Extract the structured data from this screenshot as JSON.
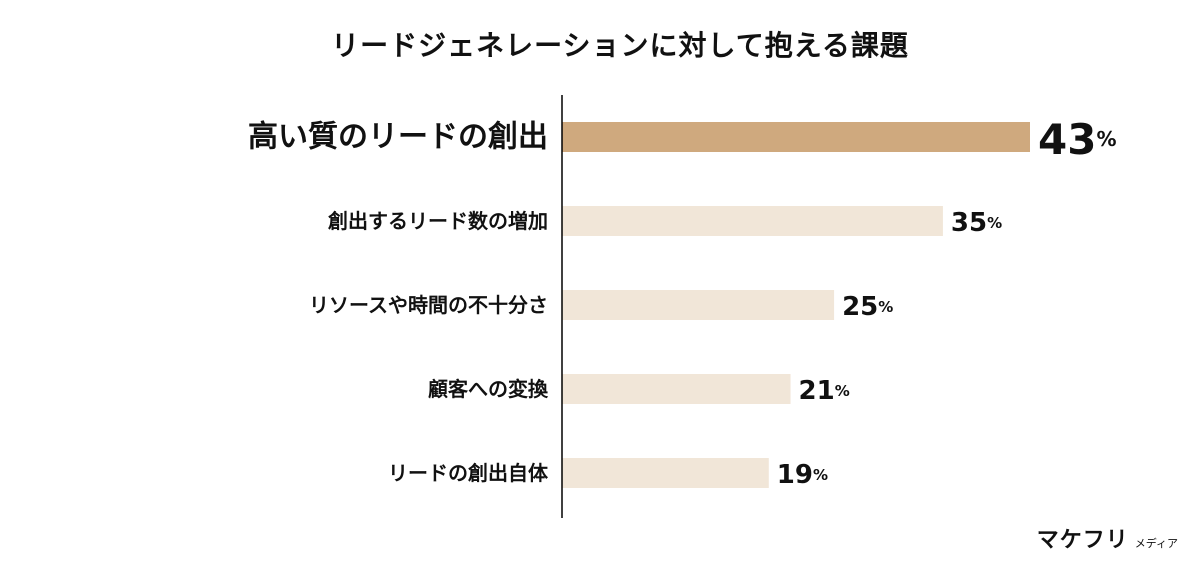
{
  "chart_data": {
    "type": "bar",
    "orientation": "horizontal",
    "title": "リードジェネレーションに対して抱える課題",
    "categories": [
      "高い質のリードの創出",
      "創出するリード数の増加",
      "リソースや時間の不十分さ",
      "顧客への変換",
      "リードの創出自体"
    ],
    "values": [
      43,
      35,
      25,
      21,
      19
    ],
    "unit": "%",
    "highlight_index": 0,
    "colors": {
      "highlight": "#cfa97e",
      "normal": "#f1e6d8",
      "axis": "#000000"
    },
    "xlim": [
      0,
      43
    ],
    "grid": false
  },
  "brand": {
    "name": "マケフリ",
    "sub": "メディア"
  }
}
